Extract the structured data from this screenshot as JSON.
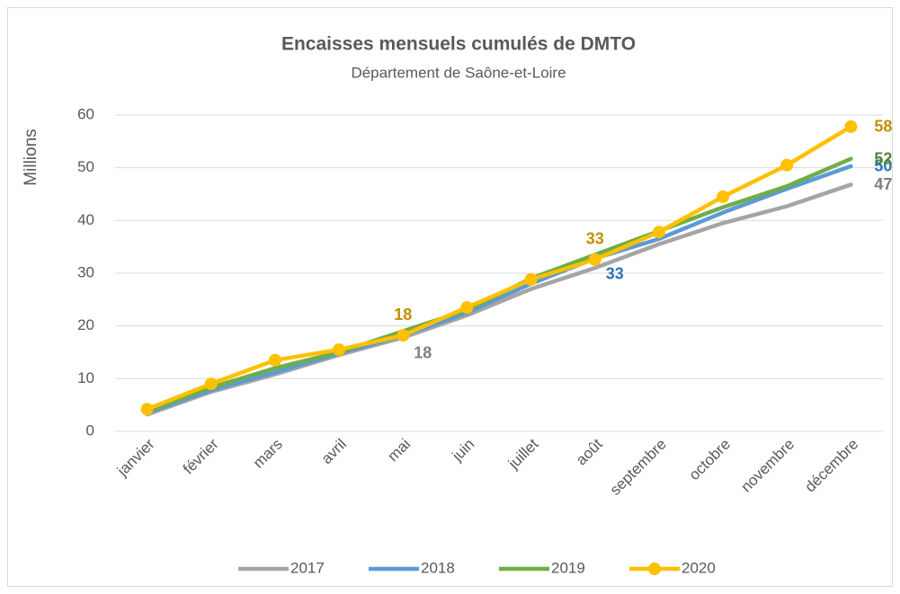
{
  "chart_data": {
    "type": "line",
    "title": "Encaisses mensuels cumulés de DMTO",
    "subtitle": "Département de Saône-et-Loire",
    "ylabel": "Millions",
    "categories": [
      "janvier",
      "février",
      "mars",
      "avril",
      "mai",
      "juin",
      "juillet",
      "août",
      "septembre",
      "octobre",
      "novembre",
      "décembre"
    ],
    "series": [
      {
        "name": "2017",
        "color": "#a5a5a5",
        "label_color": "#7f7f7f",
        "markers": false,
        "values": [
          3.2,
          7.5,
          10.8,
          14.5,
          17.8,
          22,
          27,
          31,
          35.5,
          39.5,
          42.7,
          46.8
        ],
        "value_labels": [
          null,
          null,
          null,
          null,
          "18",
          null,
          null,
          null,
          null,
          null,
          null,
          "47"
        ]
      },
      {
        "name": "2018",
        "color": "#5b9bd5",
        "label_color": "#2e75b6",
        "markers": false,
        "values": [
          3.5,
          7.8,
          11.2,
          14.8,
          18.2,
          22.5,
          28,
          32.8,
          36.5,
          41.5,
          46,
          50.3
        ],
        "value_labels": [
          null,
          null,
          null,
          null,
          null,
          null,
          null,
          "33",
          null,
          null,
          null,
          "50"
        ]
      },
      {
        "name": "2019",
        "color": "#70ad47",
        "label_color": "#548235",
        "markers": false,
        "values": [
          3.8,
          8.3,
          12,
          15,
          19,
          23,
          29,
          33.5,
          38,
          42.5,
          46.5,
          51.7
        ],
        "value_labels": [
          null,
          null,
          null,
          null,
          null,
          null,
          null,
          null,
          null,
          null,
          null,
          "52"
        ]
      },
      {
        "name": "2020",
        "color": "#ffc000",
        "label_color": "#bf9000",
        "markers": true,
        "values": [
          4.2,
          9,
          13.5,
          15.5,
          18.2,
          23.5,
          28.8,
          32.6,
          37.8,
          44.5,
          50.5,
          57.8
        ],
        "value_labels": [
          null,
          null,
          null,
          null,
          "18",
          null,
          null,
          "33",
          null,
          null,
          null,
          "58"
        ]
      }
    ],
    "ylim": [
      0,
      60
    ],
    "yticks": [
      0,
      10,
      20,
      30,
      40,
      50,
      60
    ],
    "grid": true,
    "legend": "bottom"
  }
}
